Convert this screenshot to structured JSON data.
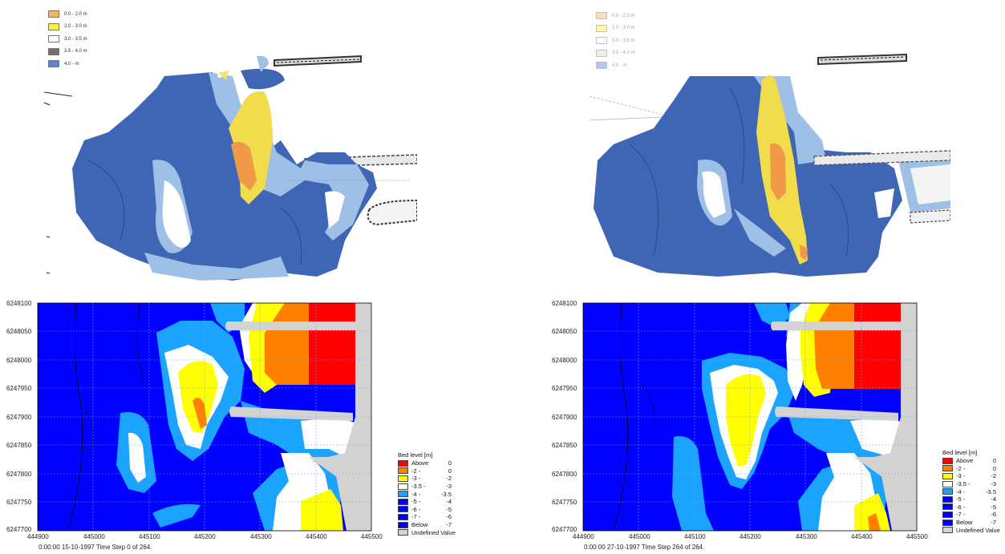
{
  "scan_legend": {
    "labels": [
      "0.0 - 2.0 m",
      "2.0 - 3.0 m",
      "3.0 - 3.5 m",
      "3.5 - 4.0 m",
      "4.0 - m"
    ],
    "colors": [
      "#f5b46a",
      "#f8ef4a",
      "#ffffff",
      "#6f6f6f",
      "#5b86c8"
    ]
  },
  "plots": [
    {
      "legend_title": "Bed level [m]",
      "footer": "0:00:00 15-10-1997  Time Step 0 of 264.",
      "x_ticks": [
        "444900",
        "445000",
        "445100",
        "445200",
        "445300",
        "445400",
        "445500"
      ],
      "y_ticks": [
        "6248100",
        "6248050",
        "6248000",
        "6247950",
        "6247900",
        "6247850",
        "6247800",
        "6247750",
        "6247700"
      ]
    },
    {
      "legend_title": "Bed level [m]",
      "footer": "0:00:00 27-10-1997  Time Step 264 of 264.",
      "x_ticks": [
        "444900",
        "445000",
        "445100",
        "445200",
        "445300",
        "445400",
        "445500"
      ],
      "y_ticks": [
        "6248100",
        "6248050",
        "6248000",
        "6247950",
        "6247900",
        "6247850",
        "6247800",
        "6247750",
        "6247700"
      ]
    }
  ],
  "bed_legend": {
    "rows": [
      {
        "lo": "Above",
        "hi": "0",
        "color": "#ff0000"
      },
      {
        "lo": "-2 -",
        "hi": "0",
        "color": "#ff8000"
      },
      {
        "lo": "-3 -",
        "hi": "-2",
        "color": "#ffff00"
      },
      {
        "lo": "-3.5 -",
        "hi": "-3",
        "color": "#ffffff"
      },
      {
        "lo": "-4 -",
        "hi": "-3.5",
        "color": "#1aa3ff"
      },
      {
        "lo": "-5 -",
        "hi": "-4",
        "color": "#0000ff"
      },
      {
        "lo": "-6 -",
        "hi": "-5",
        "color": "#0000ff"
      },
      {
        "lo": "-7 -",
        "hi": "-6",
        "color": "#0000ff"
      },
      {
        "lo": "Below",
        "hi": "-7",
        "color": "#0000ff"
      }
    ],
    "undefined_label": "Undefined Value",
    "undefined_color": "#d3d3d3"
  }
}
